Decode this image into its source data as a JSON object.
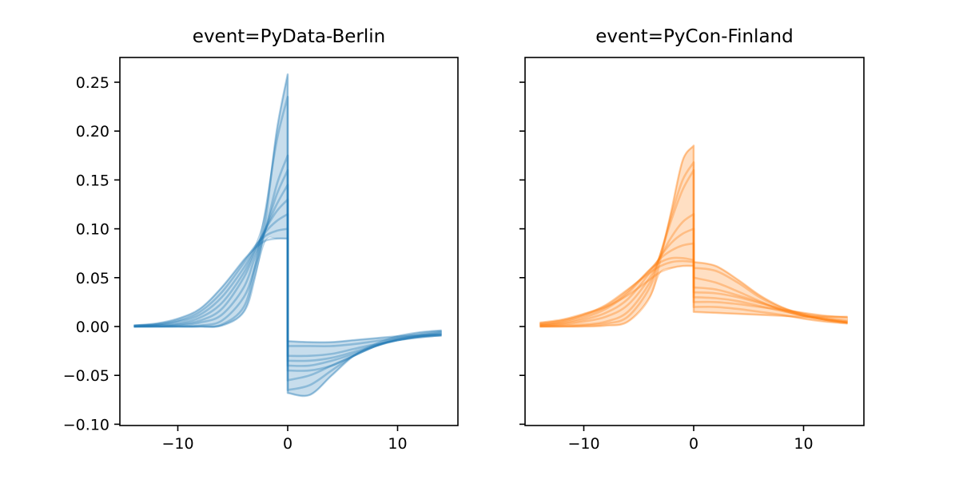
{
  "chart_data": [
    {
      "type": "line",
      "title": "event=PyData-Berlin",
      "color": "#1f77b4",
      "band": "min-max envelope, shaded",
      "xlim": [
        -15.5,
        15.5
      ],
      "ylim": [
        -0.102,
        0.277
      ],
      "xticks": [
        -10,
        0,
        10
      ],
      "xtick_labels": [
        "−10",
        "0",
        "10"
      ],
      "yticks": [
        -0.1,
        -0.05,
        0.0,
        0.05,
        0.1,
        0.15,
        0.2,
        0.25
      ],
      "ytick_labels": [
        "−0.10",
        "−0.05",
        "0.00",
        "0.05",
        "0.10",
        "0.15",
        "0.20",
        "0.25"
      ],
      "grid": false,
      "x": [
        -14,
        -12,
        -10,
        -8,
        -6,
        -4,
        -3,
        -2,
        -1,
        0,
        0,
        2,
        4,
        6,
        8,
        10,
        12,
        14
      ],
      "series": [
        {
          "values": [
            0,
            0,
            0,
            0,
            0.001,
            0.015,
            0.05,
            0.11,
            0.2,
            0.258,
            -0.068,
            -0.07,
            -0.05,
            -0.03,
            -0.018,
            -0.01,
            -0.006,
            -0.004
          ]
        },
        {
          "values": [
            0,
            0,
            0,
            0,
            0.002,
            0.02,
            0.06,
            0.12,
            0.19,
            0.235,
            -0.065,
            -0.06,
            -0.045,
            -0.03,
            -0.02,
            -0.012,
            -0.008,
            -0.005
          ]
        },
        {
          "values": [
            0,
            0,
            0,
            0.001,
            0.006,
            0.03,
            0.06,
            0.1,
            0.145,
            0.175,
            -0.055,
            -0.05,
            -0.04,
            -0.03,
            -0.02,
            -0.013,
            -0.009,
            -0.006
          ]
        },
        {
          "values": [
            0,
            0,
            0.001,
            0.004,
            0.012,
            0.04,
            0.07,
            0.1,
            0.135,
            0.16,
            -0.045,
            -0.045,
            -0.04,
            -0.03,
            -0.02,
            -0.014,
            -0.01,
            -0.007
          ]
        },
        {
          "values": [
            0,
            0.001,
            0.002,
            0.006,
            0.018,
            0.05,
            0.075,
            0.1,
            0.125,
            0.145,
            -0.04,
            -0.04,
            -0.035,
            -0.028,
            -0.02,
            -0.014,
            -0.01,
            -0.008
          ]
        },
        {
          "values": [
            0,
            0.001,
            0.003,
            0.009,
            0.024,
            0.055,
            0.078,
            0.1,
            0.118,
            0.13,
            -0.035,
            -0.035,
            -0.032,
            -0.026,
            -0.019,
            -0.014,
            -0.011,
            -0.009
          ]
        },
        {
          "values": [
            0.001,
            0.002,
            0.005,
            0.012,
            0.03,
            0.06,
            0.08,
            0.097,
            0.108,
            0.115,
            -0.03,
            -0.03,
            -0.028,
            -0.023,
            -0.018,
            -0.014,
            -0.011,
            -0.009
          ]
        },
        {
          "values": [
            0.001,
            0.002,
            0.006,
            0.015,
            0.035,
            0.065,
            0.082,
            0.093,
            0.098,
            0.1,
            -0.02,
            -0.02,
            -0.02,
            -0.018,
            -0.015,
            -0.012,
            -0.01,
            -0.009
          ]
        },
        {
          "values": [
            0.001,
            0.003,
            0.008,
            0.018,
            0.04,
            0.068,
            0.08,
            0.088,
            0.09,
            0.09,
            -0.015,
            -0.016,
            -0.016,
            -0.014,
            -0.012,
            -0.01,
            -0.009,
            -0.008
          ]
        }
      ]
    },
    {
      "type": "line",
      "title": "event=PyCon-Finland",
      "color": "#ff7f0e",
      "band": "min-max envelope, shaded",
      "xlim": [
        -15.5,
        15.5
      ],
      "ylim": [
        -0.102,
        0.277
      ],
      "sharey": true,
      "xticks": [
        -10,
        0,
        10
      ],
      "xtick_labels": [
        "−10",
        "0",
        "10"
      ],
      "yticks": [
        -0.1,
        -0.05,
        0.0,
        0.05,
        0.1,
        0.15,
        0.2,
        0.25
      ],
      "grid": false,
      "x": [
        -14,
        -12,
        -10,
        -8,
        -6,
        -4,
        -3,
        -2,
        -1,
        0,
        0,
        2,
        4,
        6,
        8,
        10,
        12,
        14
      ],
      "series": [
        {
          "values": [
            0,
            0,
            0,
            0.001,
            0.005,
            0.03,
            0.07,
            0.12,
            0.17,
            0.185,
            0.02,
            0.02,
            0.018,
            0.015,
            0.012,
            0.008,
            0.005,
            0.003
          ]
        },
        {
          "values": [
            0,
            0,
            0.001,
            0.003,
            0.01,
            0.04,
            0.075,
            0.115,
            0.15,
            0.168,
            0.03,
            0.029,
            0.026,
            0.021,
            0.016,
            0.011,
            0.007,
            0.004
          ]
        },
        {
          "values": [
            0,
            0.001,
            0.002,
            0.005,
            0.015,
            0.045,
            0.075,
            0.11,
            0.14,
            0.16,
            0.04,
            0.038,
            0.032,
            0.025,
            0.017,
            0.011,
            0.007,
            0.004
          ]
        },
        {
          "values": [
            0.001,
            0.002,
            0.005,
            0.01,
            0.022,
            0.05,
            0.072,
            0.092,
            0.107,
            0.115,
            0.05,
            0.045,
            0.036,
            0.026,
            0.017,
            0.011,
            0.007,
            0.004
          ]
        },
        {
          "values": [
            0.001,
            0.003,
            0.007,
            0.014,
            0.028,
            0.055,
            0.072,
            0.086,
            0.095,
            0.1,
            0.035,
            0.034,
            0.03,
            0.024,
            0.018,
            0.013,
            0.009,
            0.006
          ]
        },
        {
          "values": [
            0.002,
            0.004,
            0.009,
            0.018,
            0.034,
            0.058,
            0.07,
            0.078,
            0.083,
            0.085,
            0.025,
            0.025,
            0.023,
            0.02,
            0.017,
            0.014,
            0.011,
            0.009
          ]
        },
        {
          "values": [
            0.003,
            0.006,
            0.012,
            0.022,
            0.038,
            0.055,
            0.062,
            0.066,
            0.067,
            0.066,
            0.066,
            0.062,
            0.048,
            0.032,
            0.02,
            0.012,
            0.007,
            0.004
          ]
        },
        {
          "values": [
            0.002,
            0.005,
            0.011,
            0.02,
            0.036,
            0.058,
            0.066,
            0.07,
            0.07,
            0.068,
            0.06,
            0.057,
            0.045,
            0.03,
            0.019,
            0.012,
            0.008,
            0.005
          ]
        },
        {
          "values": [
            0.004,
            0.007,
            0.013,
            0.02,
            0.032,
            0.048,
            0.056,
            0.06,
            0.062,
            0.062,
            0.015,
            0.014,
            0.013,
            0.012,
            0.011,
            0.01,
            0.01,
            0.01
          ]
        }
      ]
    }
  ]
}
